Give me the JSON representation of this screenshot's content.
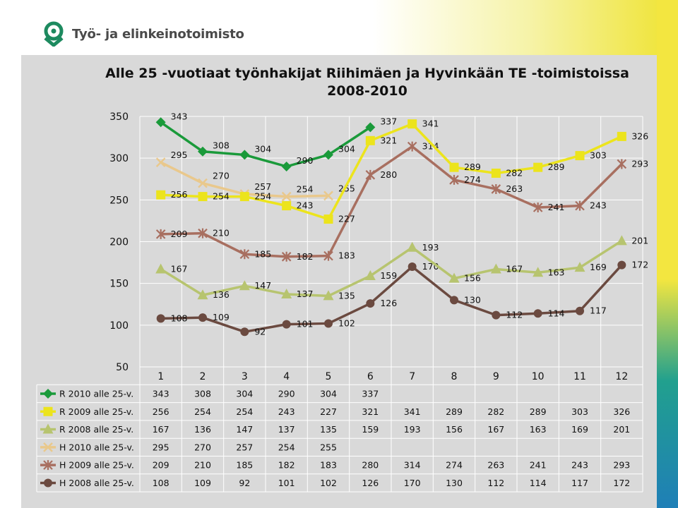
{
  "logo": {
    "text": "Työ- ja elinkeinotoimisto"
  },
  "colors": {
    "r2010": "#1a9a3a",
    "r2009": "#ece41c",
    "r2008": "#b7c46f",
    "h2010": "#e9c88c",
    "h2009": "#a86f60",
    "h2008": "#6b4a40",
    "panel": "#d9d9d9",
    "brand_green": "#1d8a5f"
  },
  "chart_data": {
    "type": "line",
    "title": "Alle 25 -vuotiaat työnhakijat Riihimäen ja Hyvinkään TE -toimistoissa 2008-2010",
    "categories": [
      "1",
      "2",
      "3",
      "4",
      "5",
      "6",
      "7",
      "8",
      "9",
      "10",
      "11",
      "12"
    ],
    "y_ticks": [
      "350",
      "300",
      "250",
      "200",
      "150",
      "100",
      "50"
    ],
    "ylim": [
      50,
      350
    ],
    "grid": true,
    "legend_placement": "data table below chart",
    "series": [
      {
        "name": "R 2010 alle 25-v.",
        "marker": "diamond",
        "color_key": "r2010",
        "values": [
          343,
          308,
          304,
          290,
          304,
          337,
          null,
          null,
          null,
          null,
          null,
          null
        ]
      },
      {
        "name": "R 2009 alle 25-v.",
        "marker": "square",
        "color_key": "r2009",
        "values": [
          256,
          254,
          254,
          243,
          227,
          321,
          341,
          289,
          282,
          289,
          303,
          326
        ]
      },
      {
        "name": "R 2008 alle 25-v.",
        "marker": "triangle",
        "color_key": "r2008",
        "values": [
          167,
          136,
          147,
          137,
          135,
          159,
          193,
          156,
          167,
          163,
          169,
          201
        ]
      },
      {
        "name": "H 2010 alle 25-v.",
        "marker": "x",
        "color_key": "h2010",
        "values": [
          295,
          270,
          257,
          254,
          255,
          null,
          null,
          null,
          null,
          null,
          null,
          null
        ]
      },
      {
        "name": "H 2009 alle 25-v.",
        "marker": "star",
        "color_key": "h2009",
        "values": [
          209,
          210,
          185,
          182,
          183,
          280,
          314,
          274,
          263,
          241,
          243,
          293
        ]
      },
      {
        "name": "H 2008 alle 25-v.",
        "marker": "circle",
        "color_key": "h2008",
        "values": [
          108,
          109,
          92,
          101,
          102,
          126,
          170,
          130,
          112,
          114,
          117,
          172
        ]
      }
    ]
  }
}
